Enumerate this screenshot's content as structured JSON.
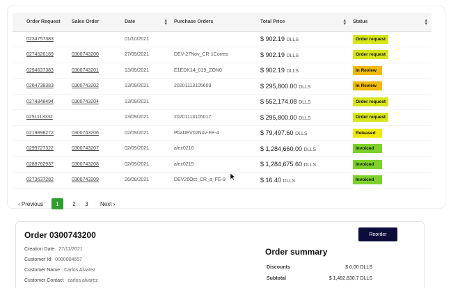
{
  "table": {
    "headers": {
      "order_request": "Order Request",
      "sales_order": "Sales Order",
      "date": "Date",
      "purchase_orders": "Purchase Orders",
      "total_price": "Total Price",
      "status": "Status"
    },
    "rows": [
      {
        "order_request": "0234757383",
        "sales_order": "",
        "date": "01/10/2021",
        "po": "",
        "price": "$ 902.19",
        "currency": "DLLS",
        "status": "Order request",
        "status_color": "#d7e61a"
      },
      {
        "order_request": "0274526189",
        "sales_order": "0300743200",
        "date": "27/09/2021",
        "po": "DEV-27Nov_CR-1Correo",
        "price": "$ 902.19",
        "currency": "DLLS",
        "status": "Order request",
        "status_color": "#d7e61a"
      },
      {
        "order_request": "0294637383",
        "sales_order": "0300743201",
        "date": "13/09/2021",
        "po": "E1EDK14_019_ZON0",
        "price": "$ 902.19",
        "currency": "DLLS",
        "status": "In Review",
        "status_color": "#f0b90b"
      },
      {
        "order_request": "0264738383",
        "sales_order": "0300743202",
        "date": "13/09/2021",
        "po": "20201113105609",
        "price": "$ 295,800.00",
        "currency": "DLLS",
        "status": "In Review",
        "status_color": "#f0b90b"
      },
      {
        "order_request": "0274848494",
        "sales_order": "0300743204",
        "date": "13/09/2021",
        "po": "",
        "price": "$ 552,174.08",
        "currency": "DLLS",
        "status": "Order request",
        "status_color": "#d7e61a"
      },
      {
        "order_request": "0251113332",
        "sales_order": "",
        "date": "13/09/2021",
        "po": "20201113105017",
        "price": "$ 295,800.00",
        "currency": "DLLS",
        "status": "Order request",
        "status_color": "#d7e61a"
      },
      {
        "order_request": "0219898272",
        "sales_order": "0300743206",
        "date": "02/09/2021",
        "po": "PbaDEV02Nov-FE-4",
        "price": "$ 79,497.60",
        "currency": "DLLS",
        "status": "Released",
        "status_color": "#f2ea0f"
      },
      {
        "order_request": "0299727322",
        "sales_order": "0300743207",
        "date": "02/09/2021",
        "po": "alex0216",
        "price": "$ 1,284,660.00",
        "currency": "DLLS",
        "status": "Invoiced",
        "status_color": "#7cd12a"
      },
      {
        "order_request": "0288762937",
        "sales_order": "0300743208",
        "date": "02/09/2021",
        "po": "alex0215",
        "price": "$ 1,284,675.60",
        "currency": "DLLS",
        "status": "Invoiced",
        "status_color": "#7cd12a"
      },
      {
        "order_request": "0273637282",
        "sales_order": "0300743209",
        "date": "26/08/2021",
        "po": "DEV26Oct_CR_a_FE-9",
        "price": "$ 16.40",
        "currency": "DLLS",
        "status": "Invoiced",
        "status_color": "#7cd12a"
      }
    ]
  },
  "pagination": {
    "previous": "Previous",
    "next": "Next",
    "pages": [
      "1",
      "2",
      "3"
    ],
    "active": "1"
  },
  "detail": {
    "title": "Order 0300743200",
    "reorder_label": "Reorder",
    "fields": [
      {
        "label": "Creation Date",
        "value": "27/11/2021"
      },
      {
        "label": "Customer Id",
        "value": "0000004657"
      },
      {
        "label": "Customer Name",
        "value": "Carlos Alvarez"
      },
      {
        "label": "Customer Contact",
        "value": "carlos.alvarez"
      }
    ],
    "summary_title": "Order summary",
    "summary": [
      {
        "label": "Discounts",
        "value": "$ 0.00 DLLS"
      },
      {
        "label": "Subtotal",
        "value": "$ 1,482,830.7 DLLS"
      }
    ]
  },
  "icons": {
    "sort": "sort-arrows-icon",
    "chevron_left": "chevron-left-icon",
    "chevron_right": "chevron-right-icon",
    "cursor": "mouse-pointer-icon"
  }
}
